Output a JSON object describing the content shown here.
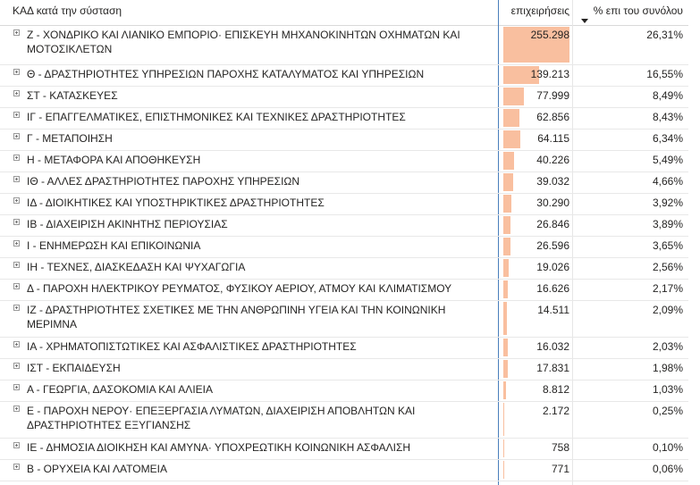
{
  "header": {
    "category_label": "ΚΑΔ κατά την σύσταση",
    "value_label": "επιχειρήσεις",
    "pct_label": "% επι του συνόλου"
  },
  "colors": {
    "bar": "#f9bf9f",
    "divider": "#4a7ebb"
  },
  "bar_max_value": 255298,
  "rows": [
    {
      "label": "Ζ - ΧΟΝΔΡΙΚΟ ΚΑΙ ΛΙΑΝΙΚΟ ΕΜΠΟΡΙΟ· ΕΠΙΣΚΕΥΗ ΜΗΧΑΝΟΚΙΝΗΤΩΝ ΟΧΗΜΑΤΩΝ ΚΑΙ ΜΟΤΟΣΙΚΛΕΤΩΝ",
      "value": "255.298",
      "num": 255298,
      "pct": "26,31%"
    },
    {
      "label": "Θ - ΔΡΑΣΤΗΡΙΟΤΗΤΕΣ ΥΠΗΡΕΣΙΩΝ ΠΑΡΟΧΗΣ ΚΑΤΑΛΥΜΑΤΟΣ ΚΑΙ ΥΠΗΡΕΣΙΩΝ",
      "value": "139.213",
      "num": 139213,
      "pct": "16,55%"
    },
    {
      "label": "ΣΤ - ΚΑΤΑΣΚΕΥΕΣ",
      "value": "77.999",
      "num": 77999,
      "pct": "8,49%"
    },
    {
      "label": "ΙΓ - ΕΠΑΓΓΕΛΜΑΤΙΚΕΣ, ΕΠΙΣΤΗΜΟΝΙΚΕΣ ΚΑΙ ΤΕΧΝΙΚΕΣ ΔΡΑΣΤΗΡΙΟΤΗΤΕΣ",
      "value": "62.856",
      "num": 62856,
      "pct": "8,43%"
    },
    {
      "label": "Γ - ΜΕΤΑΠΟΙΗΣΗ",
      "value": "64.115",
      "num": 64115,
      "pct": "6,34%"
    },
    {
      "label": "Η - ΜΕΤΑΦΟΡΑ ΚΑΙ ΑΠΟΘΗΚΕΥΣΗ",
      "value": "40.226",
      "num": 40226,
      "pct": "5,49%"
    },
    {
      "label": "ΙΘ - ΑΛΛΕΣ ΔΡΑΣΤΗΡΙΟΤΗΤΕΣ ΠΑΡΟΧΗΣ ΥΠΗΡΕΣΙΩΝ",
      "value": "39.032",
      "num": 39032,
      "pct": "4,66%"
    },
    {
      "label": "ΙΔ - ΔΙΟΙΚΗΤΙΚΕΣ ΚΑΙ ΥΠΟΣΤΗΡΙΚΤΙΚΕΣ ΔΡΑΣΤΗΡΙΟΤΗΤΕΣ",
      "value": "30.290",
      "num": 30290,
      "pct": "3,92%"
    },
    {
      "label": "ΙΒ - ΔΙΑΧΕΙΡΙΣΗ ΑΚΙΝΗΤΗΣ ΠΕΡΙΟΥΣΙΑΣ",
      "value": "26.846",
      "num": 26846,
      "pct": "3,89%"
    },
    {
      "label": "Ι - ΕΝΗΜΕΡΩΣΗ ΚΑΙ ΕΠΙΚΟΙΝΩΝΙΑ",
      "value": "26.596",
      "num": 26596,
      "pct": "3,65%"
    },
    {
      "label": "ΙΗ - ΤΕΧΝΕΣ, ΔΙΑΣΚΕΔΑΣΗ ΚΑΙ ΨΥΧΑΓΩΓΙΑ",
      "value": "19.026",
      "num": 19026,
      "pct": "2,56%"
    },
    {
      "label": "Δ - ΠΑΡΟΧΗ ΗΛΕΚΤΡΙΚΟΥ ΡΕΥΜΑΤΟΣ, ΦΥΣΙΚΟΥ ΑΕΡΙΟΥ, ΑΤΜΟΥ ΚΑΙ ΚΛΙΜΑΤΙΣΜΟΥ",
      "value": "16.626",
      "num": 16626,
      "pct": "2,17%"
    },
    {
      "label": "ΙΖ - ΔΡΑΣΤΗΡΙΟΤΗΤΕΣ ΣΧΕΤΙΚΕΣ ΜΕ ΤΗΝ ΑΝΘΡΩΠΙΝΗ ΥΓΕΙΑ ΚΑΙ ΤΗΝ ΚΟΙΝΩΝΙΚΗ ΜΕΡΙΜΝΑ",
      "value": "14.511",
      "num": 14511,
      "pct": "2,09%"
    },
    {
      "label": "ΙΑ - ΧΡΗΜΑΤΟΠΙΣΤΩΤΙΚΕΣ ΚΑΙ ΑΣΦΑΛΙΣΤΙΚΕΣ ΔΡΑΣΤΗΡΙΟΤΗΤΕΣ",
      "value": "16.032",
      "num": 16032,
      "pct": "2,03%"
    },
    {
      "label": "ΙΣΤ - ΕΚΠΑΙΔΕΥΣΗ",
      "value": "17.831",
      "num": 17831,
      "pct": "1,98%"
    },
    {
      "label": "Α - ΓΕΩΡΓΙΑ, ΔΑΣΟΚΟΜΙΑ ΚΑΙ ΑΛΙΕΙΑ",
      "value": "8.812",
      "num": 8812,
      "pct": "1,03%"
    },
    {
      "label": "Ε - ΠΑΡΟΧΗ ΝΕΡΟΥ· ΕΠΕΞΕΡΓΑΣΙΑ ΛΥΜΑΤΩΝ, ΔΙΑΧΕΙΡΙΣΗ ΑΠΟΒΛΗΤΩΝ ΚΑΙ ΔΡΑΣΤΗΡΙΟΤΗΤΕΣ ΕΞΥΓΙΑΝΣΗΣ",
      "value": "2.172",
      "num": 2172,
      "pct": "0,25%"
    },
    {
      "label": "ΙΕ - ΔΗΜΟΣΙΑ ΔΙΟΙΚΗΣΗ ΚΑΙ ΑΜΥΝΑ· ΥΠΟΧΡΕΩΤΙΚΗ ΚΟΙΝΩΝΙΚΗ ΑΣΦΑΛΙΣΗ",
      "value": "758",
      "num": 758,
      "pct": "0,10%"
    },
    {
      "label": "Β - ΟΡΥΧΕΙΑ ΚΑΙ ΛΑΤΟΜΕΙΑ",
      "value": "771",
      "num": 771,
      "pct": "0,06%"
    }
  ]
}
